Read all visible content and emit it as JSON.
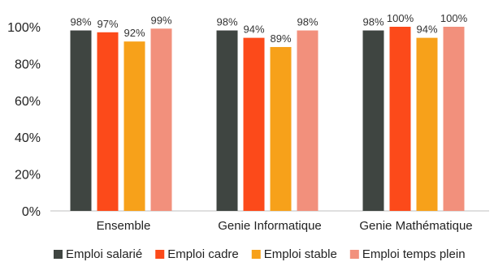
{
  "chart_data": {
    "type": "bar",
    "title": "",
    "xlabel": "",
    "ylabel": "",
    "ylim": [
      0,
      100
    ],
    "yticks": [
      0,
      20,
      40,
      60,
      80,
      100
    ],
    "ytick_labels": [
      "0%",
      "20%",
      "40%",
      "60%",
      "80%",
      "100%"
    ],
    "categories": [
      "Ensemble",
      "Genie Informatique",
      "Genie Mathématique"
    ],
    "series": [
      {
        "name": "Emploi salarié",
        "color": "#3f4541",
        "values": [
          98,
          98,
          98
        ],
        "labels": [
          "98%",
          "98%",
          "98%"
        ]
      },
      {
        "name": "Emploi cadre",
        "color": "#fc4a1a",
        "values": [
          97,
          94,
          100
        ],
        "labels": [
          "97%",
          "94%",
          "100%"
        ]
      },
      {
        "name": "Emploi stable",
        "color": "#f7a11a",
        "values": [
          92,
          89,
          94
        ],
        "labels": [
          "92%",
          "89%",
          "94%"
        ]
      },
      {
        "name": "Emploi temps plein",
        "color": "#f2907c",
        "values": [
          99,
          98,
          100
        ],
        "labels": [
          "99%",
          "98%",
          "100%"
        ]
      }
    ],
    "grid": false,
    "legend": "bottom"
  }
}
